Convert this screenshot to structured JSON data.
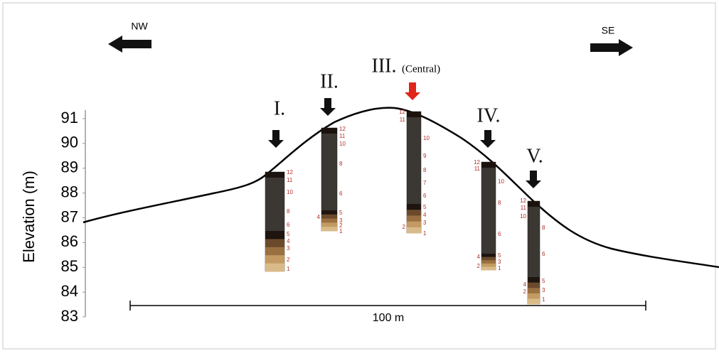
{
  "directions": {
    "left": "NW",
    "right": "SE"
  },
  "axis": {
    "label": "Elevation (m)",
    "ticks": [
      91,
      90,
      89,
      88,
      87,
      86,
      85,
      84,
      83
    ]
  },
  "cores": [
    {
      "name": "I.",
      "layers": [
        12,
        11,
        10,
        8,
        6,
        5,
        4,
        3,
        2,
        1
      ]
    },
    {
      "name": "II.",
      "layers": [
        12,
        11,
        10,
        8,
        6,
        5,
        4,
        3,
        2,
        1
      ]
    },
    {
      "name": "III.",
      "note": "(Central)",
      "layers": [
        12,
        11,
        10,
        9,
        8,
        7,
        6,
        5,
        4,
        3,
        2,
        1
      ]
    },
    {
      "name": "IV.",
      "layers": [
        12,
        11,
        10,
        8,
        6,
        5,
        4,
        3,
        2,
        1
      ]
    },
    {
      "name": "V.",
      "layers": [
        12,
        11,
        10,
        8,
        6,
        5,
        4,
        3,
        2,
        1
      ]
    }
  ],
  "scale_bar": "100 m"
}
